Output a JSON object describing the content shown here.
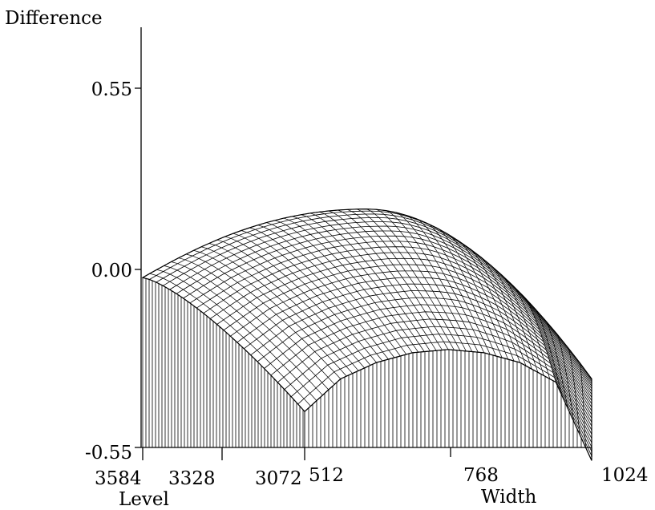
{
  "chart_data": {
    "type": "surface",
    "zlabel": "Difference",
    "xlabel": "Level",
    "ylabel": "Width",
    "z_ticks": [
      "0.55",
      "0.00",
      "-0.55"
    ],
    "zlim": [
      -0.55,
      0.55
    ],
    "level_ticks": [
      "3584",
      "3328",
      "3072"
    ],
    "width_ticks": [
      "512",
      "768",
      "1024"
    ],
    "level_range": [
      3072,
      3584
    ],
    "width_range": [
      512,
      1024
    ],
    "grid": false,
    "surface": {
      "level_steps": 24,
      "width_steps": 48,
      "corner_values": {
        "level_3584_width_512": -0.03,
        "level_3072_width_512": -0.44,
        "level_3584_width_1024": -0.34,
        "level_3072_width_1024": -0.59
      },
      "ridge_near_3584": {
        "width": 800,
        "value": 0.18
      },
      "front_profile_3072": [
        [
          512,
          -0.44
        ],
        [
          576,
          -0.34
        ],
        [
          640,
          -0.29
        ],
        [
          704,
          -0.26
        ],
        [
          768,
          -0.25
        ],
        [
          832,
          -0.26
        ],
        [
          896,
          -0.29
        ],
        [
          960,
          -0.35
        ],
        [
          1024,
          -0.59
        ]
      ]
    }
  }
}
